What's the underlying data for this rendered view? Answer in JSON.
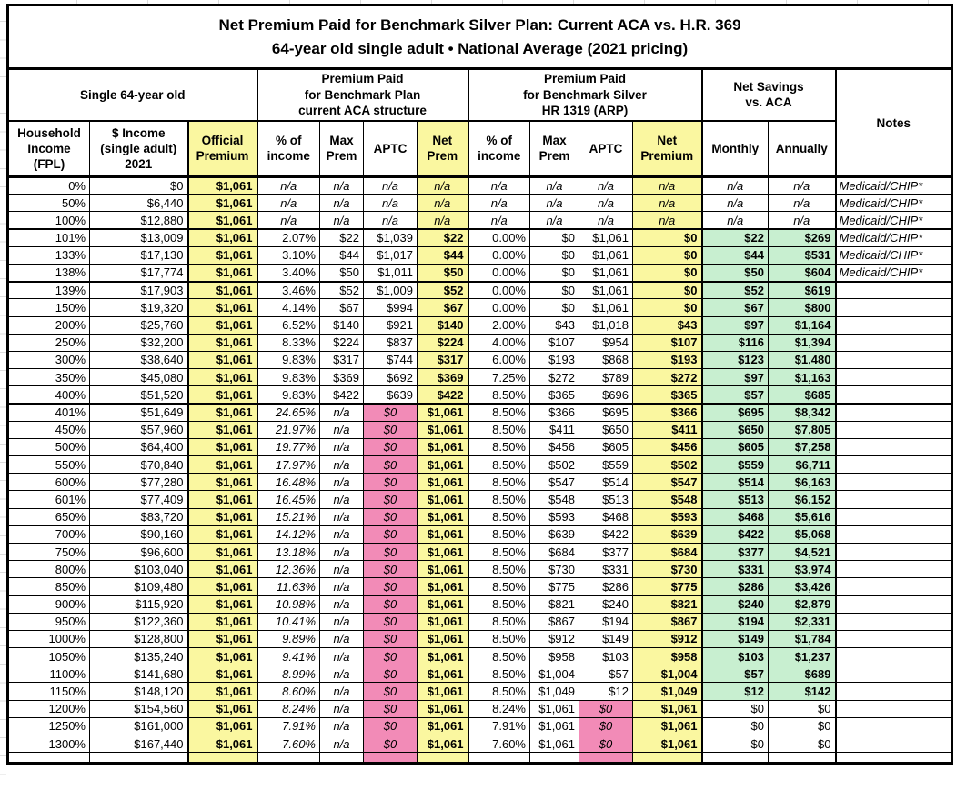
{
  "title": {
    "line1": "Net Premium Paid for Benchmark Silver Plan: Current ACA vs. H.R. 369",
    "line2": "64-year old single adult • National Average (2021 pricing)"
  },
  "colors": {
    "highlight_yellow": "#FAF7A0",
    "highlight_pink": "#F28BB7",
    "highlight_green": "#C8EFD0"
  },
  "header": {
    "groups": [
      {
        "label": "Single 64-year old",
        "span": 3
      },
      {
        "label": "Premium Paid\nfor Benchmark Plan\ncurrent ACA structure",
        "span": 4
      },
      {
        "label": "Premium Paid\nfor Benchmark Silver\nHR 1319 (ARP)",
        "span": 4
      },
      {
        "label": "Net Savings\nvs. ACA",
        "span": 2
      }
    ],
    "notes_label": "Notes",
    "columns": [
      "Household\nIncome\n(FPL)",
      "$ Income\n(single adult)\n2021",
      "Official\nPremium",
      "% of\nincome",
      "Max\nPrem",
      "APTC",
      "Net\nPrem",
      "% of\nincome",
      "Max\nPrem",
      "APTC",
      "Net\nPremium",
      "Monthly",
      "Annually"
    ],
    "yellow_columns": [
      2,
      6,
      10
    ]
  },
  "table": {
    "col_keys": [
      "fpl",
      "income",
      "official-premium",
      "aca-pct-income",
      "aca-max-prem",
      "aca-aptc",
      "aca-net-prem",
      "arp-pct-income",
      "arp-max-prem",
      "arp-aptc",
      "arp-net-premium",
      "savings-monthly",
      "savings-annually",
      "notes"
    ],
    "bands": {
      "na": [
        "num",
        "num",
        "yb",
        "na",
        "na",
        "na",
        "nay",
        "na",
        "na",
        "na",
        "nay",
        "na",
        "na",
        "notes"
      ],
      "subsidy": [
        "num",
        "num",
        "yb",
        "num",
        "num",
        "num",
        "yb",
        "num",
        "num",
        "num",
        "yb",
        "green",
        "green",
        "notes"
      ],
      "cliff": [
        "num",
        "num",
        "yb",
        "pcti",
        "na",
        "pink",
        "yb",
        "num",
        "num",
        "num",
        "yb",
        "green",
        "green",
        "notes"
      ],
      "flat": [
        "num",
        "num",
        "yb",
        "pcti",
        "na",
        "pink",
        "yb",
        "num",
        "num",
        "pink",
        "yb",
        "num",
        "num",
        "notes"
      ]
    },
    "rows": [
      {
        "band": "na",
        "thick_below": false,
        "cells": [
          "0%",
          "$0",
          "$1,061",
          "n/a",
          "n/a",
          "n/a",
          "n/a",
          "n/a",
          "n/a",
          "n/a",
          "n/a",
          "n/a",
          "n/a",
          "Medicaid/CHIP*"
        ]
      },
      {
        "band": "na",
        "thick_below": false,
        "cells": [
          "50%",
          "$6,440",
          "$1,061",
          "n/a",
          "n/a",
          "n/a",
          "n/a",
          "n/a",
          "n/a",
          "n/a",
          "n/a",
          "n/a",
          "n/a",
          "Medicaid/CHIP*"
        ]
      },
      {
        "band": "na",
        "thick_below": true,
        "cells": [
          "100%",
          "$12,880",
          "$1,061",
          "n/a",
          "n/a",
          "n/a",
          "n/a",
          "n/a",
          "n/a",
          "n/a",
          "n/a",
          "n/a",
          "n/a",
          "Medicaid/CHIP*"
        ]
      },
      {
        "band": "subsidy",
        "thick_below": false,
        "cells": [
          "101%",
          "$13,009",
          "$1,061",
          "2.07%",
          "$22",
          "$1,039",
          "$22",
          "0.00%",
          "$0",
          "$1,061",
          "$0",
          "$22",
          "$269",
          "Medicaid/CHIP*"
        ]
      },
      {
        "band": "subsidy",
        "thick_below": false,
        "cells": [
          "133%",
          "$17,130",
          "$1,061",
          "3.10%",
          "$44",
          "$1,017",
          "$44",
          "0.00%",
          "$0",
          "$1,061",
          "$0",
          "$44",
          "$531",
          "Medicaid/CHIP*"
        ]
      },
      {
        "band": "subsidy",
        "thick_below": true,
        "cells": [
          "138%",
          "$17,774",
          "$1,061",
          "3.40%",
          "$50",
          "$1,011",
          "$50",
          "0.00%",
          "$0",
          "$1,061",
          "$0",
          "$50",
          "$604",
          "Medicaid/CHIP*"
        ]
      },
      {
        "band": "subsidy",
        "thick_below": false,
        "cells": [
          "139%",
          "$17,903",
          "$1,061",
          "3.46%",
          "$52",
          "$1,009",
          "$52",
          "0.00%",
          "$0",
          "$1,061",
          "$0",
          "$52",
          "$619",
          ""
        ]
      },
      {
        "band": "subsidy",
        "thick_below": false,
        "cells": [
          "150%",
          "$19,320",
          "$1,061",
          "4.14%",
          "$67",
          "$994",
          "$67",
          "0.00%",
          "$0",
          "$1,061",
          "$0",
          "$67",
          "$800",
          ""
        ]
      },
      {
        "band": "subsidy",
        "thick_below": false,
        "cells": [
          "200%",
          "$25,760",
          "$1,061",
          "6.52%",
          "$140",
          "$921",
          "$140",
          "2.00%",
          "$43",
          "$1,018",
          "$43",
          "$97",
          "$1,164",
          ""
        ]
      },
      {
        "band": "subsidy",
        "thick_below": false,
        "cells": [
          "250%",
          "$32,200",
          "$1,061",
          "8.33%",
          "$224",
          "$837",
          "$224",
          "4.00%",
          "$107",
          "$954",
          "$107",
          "$116",
          "$1,394",
          ""
        ]
      },
      {
        "band": "subsidy",
        "thick_below": false,
        "cells": [
          "300%",
          "$38,640",
          "$1,061",
          "9.83%",
          "$317",
          "$744",
          "$317",
          "6.00%",
          "$193",
          "$868",
          "$193",
          "$123",
          "$1,480",
          ""
        ]
      },
      {
        "band": "subsidy",
        "thick_below": false,
        "cells": [
          "350%",
          "$45,080",
          "$1,061",
          "9.83%",
          "$369",
          "$692",
          "$369",
          "7.25%",
          "$272",
          "$789",
          "$272",
          "$97",
          "$1,163",
          ""
        ]
      },
      {
        "band": "subsidy",
        "thick_below": true,
        "cells": [
          "400%",
          "$51,520",
          "$1,061",
          "9.83%",
          "$422",
          "$639",
          "$422",
          "8.50%",
          "$365",
          "$696",
          "$365",
          "$57",
          "$685",
          ""
        ]
      },
      {
        "band": "cliff",
        "thick_below": false,
        "cells": [
          "401%",
          "$51,649",
          "$1,061",
          "24.65%",
          "n/a",
          "$0",
          "$1,061",
          "8.50%",
          "$366",
          "$695",
          "$366",
          "$695",
          "$8,342",
          ""
        ]
      },
      {
        "band": "cliff",
        "thick_below": false,
        "cells": [
          "450%",
          "$57,960",
          "$1,061",
          "21.97%",
          "n/a",
          "$0",
          "$1,061",
          "8.50%",
          "$411",
          "$650",
          "$411",
          "$650",
          "$7,805",
          ""
        ]
      },
      {
        "band": "cliff",
        "thick_below": false,
        "cells": [
          "500%",
          "$64,400",
          "$1,061",
          "19.77%",
          "n/a",
          "$0",
          "$1,061",
          "8.50%",
          "$456",
          "$605",
          "$456",
          "$605",
          "$7,258",
          ""
        ]
      },
      {
        "band": "cliff",
        "thick_below": false,
        "cells": [
          "550%",
          "$70,840",
          "$1,061",
          "17.97%",
          "n/a",
          "$0",
          "$1,061",
          "8.50%",
          "$502",
          "$559",
          "$502",
          "$559",
          "$6,711",
          ""
        ]
      },
      {
        "band": "cliff",
        "thick_below": false,
        "cells": [
          "600%",
          "$77,280",
          "$1,061",
          "16.48%",
          "n/a",
          "$0",
          "$1,061",
          "8.50%",
          "$547",
          "$514",
          "$547",
          "$514",
          "$6,163",
          ""
        ]
      },
      {
        "band": "cliff",
        "thick_below": false,
        "cells": [
          "601%",
          "$77,409",
          "$1,061",
          "16.45%",
          "n/a",
          "$0",
          "$1,061",
          "8.50%",
          "$548",
          "$513",
          "$548",
          "$513",
          "$6,152",
          ""
        ]
      },
      {
        "band": "cliff",
        "thick_below": false,
        "cells": [
          "650%",
          "$83,720",
          "$1,061",
          "15.21%",
          "n/a",
          "$0",
          "$1,061",
          "8.50%",
          "$593",
          "$468",
          "$593",
          "$468",
          "$5,616",
          ""
        ]
      },
      {
        "band": "cliff",
        "thick_below": false,
        "cells": [
          "700%",
          "$90,160",
          "$1,061",
          "14.12%",
          "n/a",
          "$0",
          "$1,061",
          "8.50%",
          "$639",
          "$422",
          "$639",
          "$422",
          "$5,068",
          ""
        ]
      },
      {
        "band": "cliff",
        "thick_below": false,
        "cells": [
          "750%",
          "$96,600",
          "$1,061",
          "13.18%",
          "n/a",
          "$0",
          "$1,061",
          "8.50%",
          "$684",
          "$377",
          "$684",
          "$377",
          "$4,521",
          ""
        ]
      },
      {
        "band": "cliff",
        "thick_below": false,
        "cells": [
          "800%",
          "$103,040",
          "$1,061",
          "12.36%",
          "n/a",
          "$0",
          "$1,061",
          "8.50%",
          "$730",
          "$331",
          "$730",
          "$331",
          "$3,974",
          ""
        ]
      },
      {
        "band": "cliff",
        "thick_below": false,
        "cells": [
          "850%",
          "$109,480",
          "$1,061",
          "11.63%",
          "n/a",
          "$0",
          "$1,061",
          "8.50%",
          "$775",
          "$286",
          "$775",
          "$286",
          "$3,426",
          ""
        ]
      },
      {
        "band": "cliff",
        "thick_below": false,
        "cells": [
          "900%",
          "$115,920",
          "$1,061",
          "10.98%",
          "n/a",
          "$0",
          "$1,061",
          "8.50%",
          "$821",
          "$240",
          "$821",
          "$240",
          "$2,879",
          ""
        ]
      },
      {
        "band": "cliff",
        "thick_below": false,
        "cells": [
          "950%",
          "$122,360",
          "$1,061",
          "10.41%",
          "n/a",
          "$0",
          "$1,061",
          "8.50%",
          "$867",
          "$194",
          "$867",
          "$194",
          "$2,331",
          ""
        ]
      },
      {
        "band": "cliff",
        "thick_below": false,
        "cells": [
          "1000%",
          "$128,800",
          "$1,061",
          "9.89%",
          "n/a",
          "$0",
          "$1,061",
          "8.50%",
          "$912",
          "$149",
          "$912",
          "$149",
          "$1,784",
          ""
        ]
      },
      {
        "band": "cliff",
        "thick_below": false,
        "cells": [
          "1050%",
          "$135,240",
          "$1,061",
          "9.41%",
          "n/a",
          "$0",
          "$1,061",
          "8.50%",
          "$958",
          "$103",
          "$958",
          "$103",
          "$1,237",
          ""
        ]
      },
      {
        "band": "cliff",
        "thick_below": false,
        "cells": [
          "1100%",
          "$141,680",
          "$1,061",
          "8.99%",
          "n/a",
          "$0",
          "$1,061",
          "8.50%",
          "$1,004",
          "$57",
          "$1,004",
          "$57",
          "$689",
          ""
        ]
      },
      {
        "band": "cliff",
        "thick_below": false,
        "cells": [
          "1150%",
          "$148,120",
          "$1,061",
          "8.60%",
          "n/a",
          "$0",
          "$1,061",
          "8.50%",
          "$1,049",
          "$12",
          "$1,049",
          "$12",
          "$142",
          ""
        ]
      },
      {
        "band": "flat",
        "thick_below": false,
        "cells": [
          "1200%",
          "$154,560",
          "$1,061",
          "8.24%",
          "n/a",
          "$0",
          "$1,061",
          "8.24%",
          "$1,061",
          "$0",
          "$1,061",
          "$0",
          "$0",
          ""
        ]
      },
      {
        "band": "flat",
        "thick_below": false,
        "cells": [
          "1250%",
          "$161,000",
          "$1,061",
          "7.91%",
          "n/a",
          "$0",
          "$1,061",
          "7.91%",
          "$1,061",
          "$0",
          "$1,061",
          "$0",
          "$0",
          ""
        ]
      },
      {
        "band": "flat",
        "thick_below": false,
        "cells": [
          "1300%",
          "$167,440",
          "$1,061",
          "7.60%",
          "n/a",
          "$0",
          "$1,061",
          "7.60%",
          "$1,061",
          "$0",
          "$1,061",
          "$0",
          "$0",
          ""
        ]
      }
    ],
    "partial_bottom_row": {
      "band": "flat",
      "cells": [
        "",
        "",
        "",
        "",
        "",
        "",
        "",
        "",
        "",
        "",
        "",
        "",
        "",
        ""
      ]
    }
  }
}
